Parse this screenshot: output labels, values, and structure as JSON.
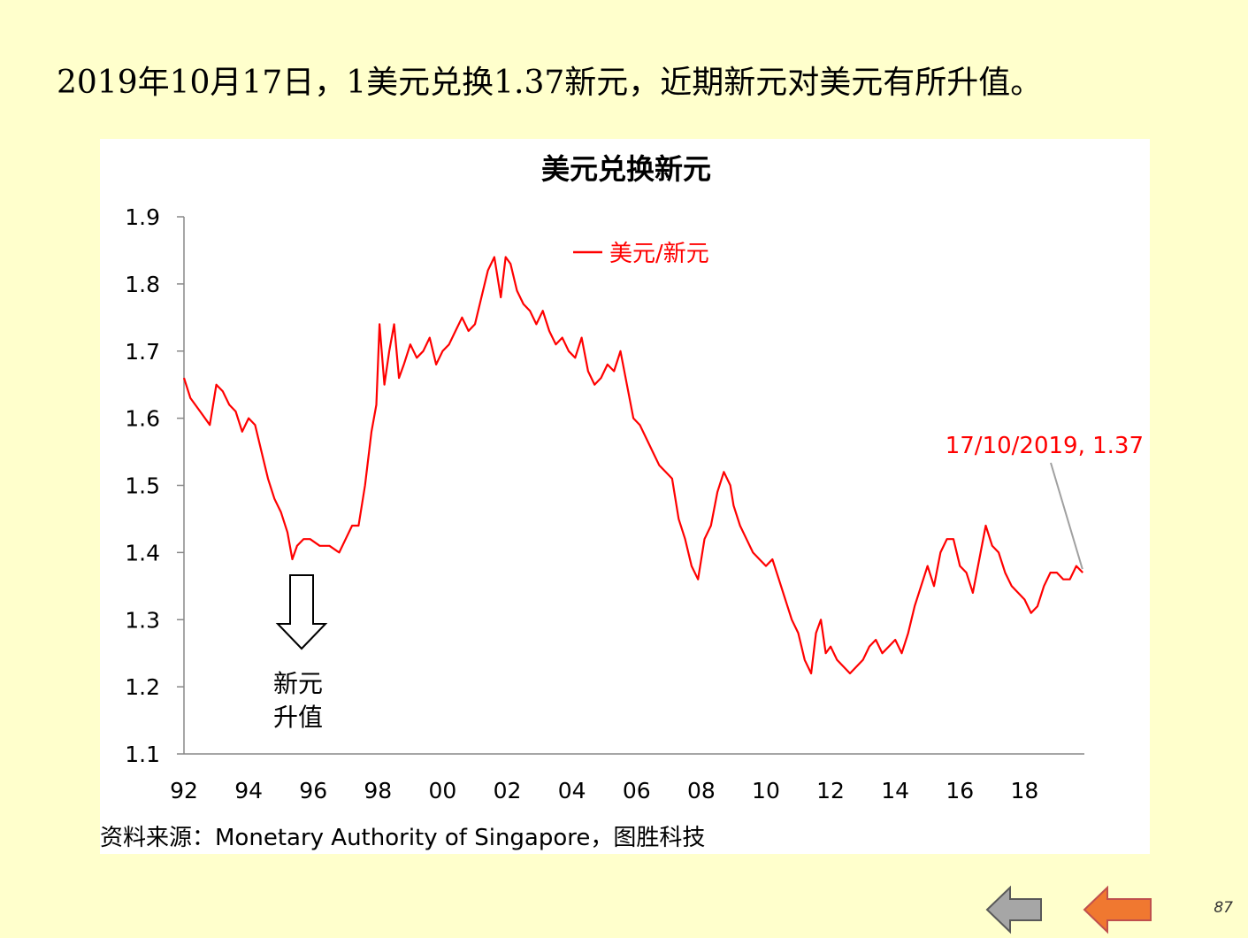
{
  "headline": "2019年10月17日，1美元兑换1.37新元，近期新元对美元有所升值。",
  "source": "资料来源：Monetary Authority of Singapore，图胜科技",
  "page_number": "87",
  "nav": {
    "back_icon": "left-arrow-gray",
    "prev_icon": "left-arrow-orange"
  },
  "colors": {
    "background": "#ffffcc",
    "series": "#ff0000",
    "axis": "#888888"
  },
  "chart_data": {
    "type": "line",
    "title": "美元兑换新元",
    "xlabel": "",
    "ylabel": "",
    "ylim": [
      1.1,
      1.9
    ],
    "xlim": [
      1992,
      2019.85
    ],
    "x_ticks": [
      {
        "value": 1992,
        "label": "92"
      },
      {
        "value": 1994,
        "label": "94"
      },
      {
        "value": 1996,
        "label": "96"
      },
      {
        "value": 1998,
        "label": "98"
      },
      {
        "value": 2000,
        "label": "00"
      },
      {
        "value": 2002,
        "label": "02"
      },
      {
        "value": 2004,
        "label": "04"
      },
      {
        "value": 2006,
        "label": "06"
      },
      {
        "value": 2008,
        "label": "08"
      },
      {
        "value": 2010,
        "label": "10"
      },
      {
        "value": 2012,
        "label": "12"
      },
      {
        "value": 2014,
        "label": "14"
      },
      {
        "value": 2016,
        "label": "16"
      },
      {
        "value": 2018,
        "label": "18"
      }
    ],
    "y_ticks": [
      {
        "value": 1.9,
        "label": "1.9"
      },
      {
        "value": 1.8,
        "label": "1.8"
      },
      {
        "value": 1.7,
        "label": "1.7"
      },
      {
        "value": 1.6,
        "label": "1.6"
      },
      {
        "value": 1.5,
        "label": "1.5"
      },
      {
        "value": 1.4,
        "label": "1.4"
      },
      {
        "value": 1.3,
        "label": "1.3"
      },
      {
        "value": 1.2,
        "label": "1.2"
      },
      {
        "value": 1.1,
        "label": "1.1"
      }
    ],
    "legend": {
      "label": "美元/新元",
      "position": "top-center"
    },
    "series": [
      {
        "name": "美元/新元",
        "x": [
          1992.0,
          1992.2,
          1992.5,
          1992.8,
          1993.0,
          1993.2,
          1993.4,
          1993.6,
          1993.8,
          1994.0,
          1994.2,
          1994.4,
          1994.6,
          1994.8,
          1995.0,
          1995.2,
          1995.35,
          1995.5,
          1995.7,
          1995.9,
          1996.2,
          1996.5,
          1996.8,
          1997.0,
          1997.2,
          1997.4,
          1997.6,
          1997.8,
          1997.95,
          1998.05,
          1998.2,
          1998.35,
          1998.5,
          1998.65,
          1998.8,
          1999.0,
          1999.2,
          1999.4,
          1999.6,
          1999.8,
          2000.0,
          2000.2,
          2000.4,
          2000.6,
          2000.8,
          2001.0,
          2001.2,
          2001.4,
          2001.6,
          2001.8,
          2001.95,
          2002.1,
          2002.3,
          2002.5,
          2002.7,
          2002.9,
          2003.1,
          2003.3,
          2003.5,
          2003.7,
          2003.9,
          2004.1,
          2004.3,
          2004.5,
          2004.7,
          2004.9,
          2005.1,
          2005.3,
          2005.5,
          2005.7,
          2005.9,
          2006.1,
          2006.3,
          2006.5,
          2006.7,
          2006.9,
          2007.1,
          2007.3,
          2007.5,
          2007.7,
          2007.9,
          2008.1,
          2008.3,
          2008.5,
          2008.7,
          2008.9,
          2009.0,
          2009.2,
          2009.4,
          2009.6,
          2009.8,
          2010.0,
          2010.2,
          2010.4,
          2010.6,
          2010.8,
          2011.0,
          2011.2,
          2011.4,
          2011.55,
          2011.7,
          2011.85,
          2012.0,
          2012.2,
          2012.4,
          2012.6,
          2012.8,
          2013.0,
          2013.2,
          2013.4,
          2013.6,
          2013.8,
          2014.0,
          2014.2,
          2014.4,
          2014.6,
          2014.8,
          2015.0,
          2015.2,
          2015.4,
          2015.6,
          2015.8,
          2016.0,
          2016.2,
          2016.4,
          2016.6,
          2016.8,
          2017.0,
          2017.2,
          2017.4,
          2017.6,
          2017.8,
          2018.0,
          2018.2,
          2018.4,
          2018.6,
          2018.8,
          2019.0,
          2019.2,
          2019.4,
          2019.6,
          2019.8
        ],
        "y": [
          1.66,
          1.63,
          1.61,
          1.59,
          1.65,
          1.64,
          1.62,
          1.61,
          1.58,
          1.6,
          1.59,
          1.55,
          1.51,
          1.48,
          1.46,
          1.43,
          1.39,
          1.41,
          1.42,
          1.42,
          1.41,
          1.41,
          1.4,
          1.42,
          1.44,
          1.44,
          1.5,
          1.58,
          1.62,
          1.74,
          1.65,
          1.7,
          1.74,
          1.66,
          1.68,
          1.71,
          1.69,
          1.7,
          1.72,
          1.68,
          1.7,
          1.71,
          1.73,
          1.75,
          1.73,
          1.74,
          1.78,
          1.82,
          1.84,
          1.78,
          1.84,
          1.83,
          1.79,
          1.77,
          1.76,
          1.74,
          1.76,
          1.73,
          1.71,
          1.72,
          1.7,
          1.69,
          1.72,
          1.67,
          1.65,
          1.66,
          1.68,
          1.67,
          1.7,
          1.65,
          1.6,
          1.59,
          1.57,
          1.55,
          1.53,
          1.52,
          1.51,
          1.45,
          1.42,
          1.38,
          1.36,
          1.42,
          1.44,
          1.49,
          1.52,
          1.5,
          1.47,
          1.44,
          1.42,
          1.4,
          1.39,
          1.38,
          1.39,
          1.36,
          1.33,
          1.3,
          1.28,
          1.24,
          1.22,
          1.28,
          1.3,
          1.25,
          1.26,
          1.24,
          1.23,
          1.22,
          1.23,
          1.24,
          1.26,
          1.27,
          1.25,
          1.26,
          1.27,
          1.25,
          1.28,
          1.32,
          1.35,
          1.38,
          1.35,
          1.4,
          1.42,
          1.42,
          1.38,
          1.37,
          1.34,
          1.39,
          1.44,
          1.41,
          1.4,
          1.37,
          1.35,
          1.34,
          1.33,
          1.31,
          1.32,
          1.35,
          1.37,
          1.37,
          1.36,
          1.36,
          1.38,
          1.37
        ]
      }
    ],
    "annotations": [
      {
        "text": "17/10/2019, 1.37",
        "x": 2019.79,
        "y": 1.37
      },
      {
        "text_lines": [
          "新元",
          "升值"
        ],
        "x": 1995.6,
        "y": 1.38
      }
    ]
  }
}
